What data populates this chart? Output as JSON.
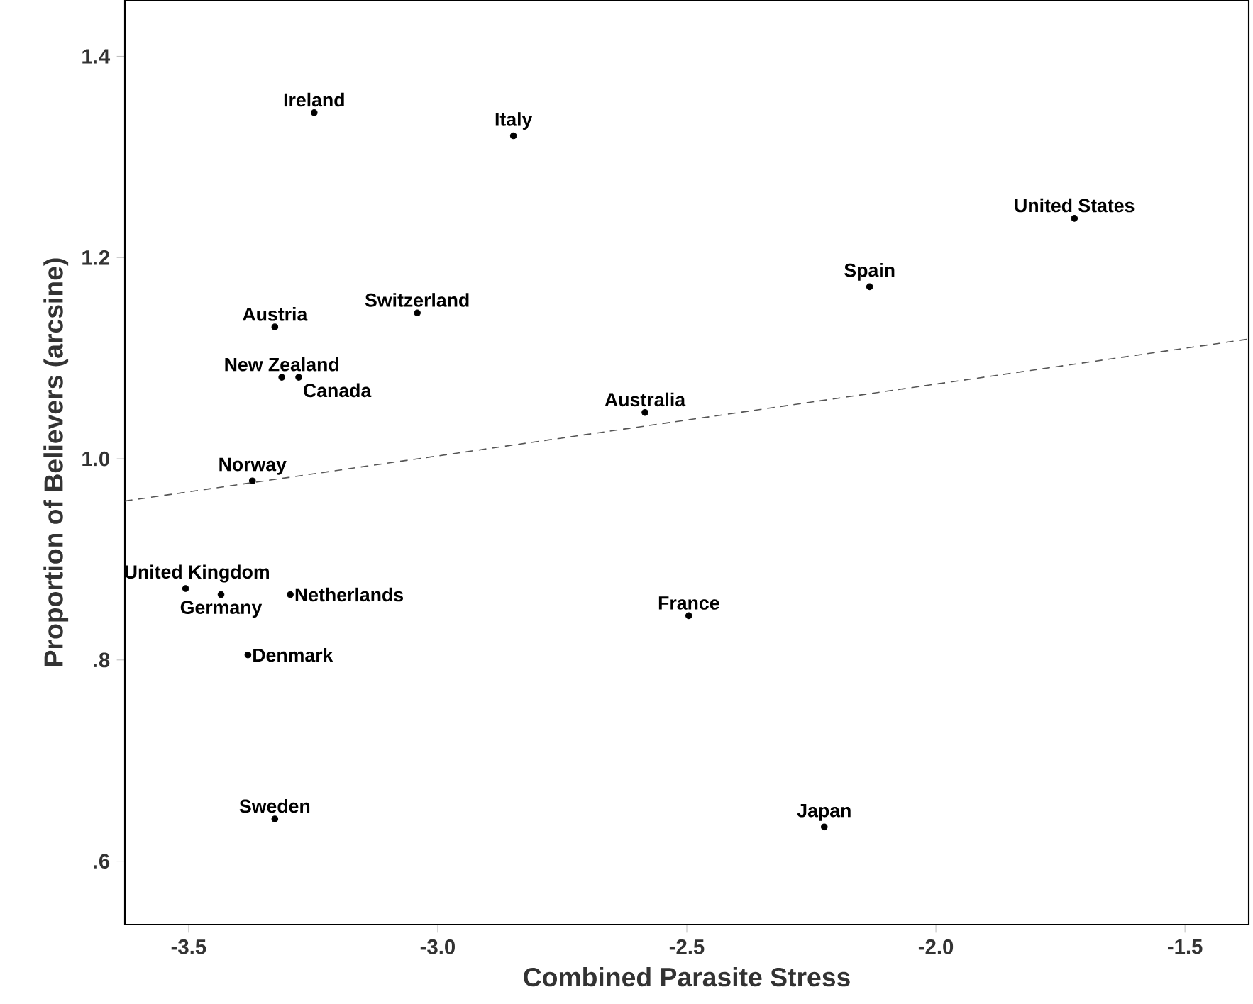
{
  "chart_data": {
    "type": "scatter",
    "xlabel": "Combined Parasite Stress",
    "ylabel": "Proportion of Believers (arcsine)",
    "xlim": [
      -3.628,
      -1.372
    ],
    "ylim": [
      0.537,
      1.456
    ],
    "xticks": [
      {
        "value": -3.5,
        "label": "-3.5"
      },
      {
        "value": -3.0,
        "label": "-3.0"
      },
      {
        "value": -2.5,
        "label": "-2.5"
      },
      {
        "value": -2.0,
        "label": "-2.0"
      },
      {
        "value": -1.5,
        "label": "-1.5"
      }
    ],
    "yticks": [
      {
        "value": 0.6,
        "label": ".6"
      },
      {
        "value": 0.8,
        "label": ".8"
      },
      {
        "value": 1.0,
        "label": "1.0"
      },
      {
        "value": 1.2,
        "label": "1.2"
      },
      {
        "value": 1.4,
        "label": "1.4"
      }
    ],
    "grid": false,
    "series": [
      {
        "color": "#000000",
        "marker": "circle",
        "x": [
          -3.248,
          -2.848,
          -1.722,
          -2.133,
          -3.041,
          -3.327,
          -3.313,
          -3.279,
          -2.584,
          -3.372,
          -3.506,
          -3.435,
          -3.296,
          -2.496,
          -3.381,
          -3.327,
          -2.224
        ],
        "values": [
          1.344,
          1.321,
          1.239,
          1.171,
          1.145,
          1.131,
          1.081,
          1.081,
          1.046,
          0.978,
          0.871,
          0.865,
          0.865,
          0.844,
          0.805,
          0.642,
          0.634
        ]
      },
      {
        "type": "line",
        "color": "#555555",
        "line_style": "dashed",
        "marker": "none",
        "x": [
          -3.628,
          -1.372
        ],
        "values": [
          0.958,
          1.119
        ]
      }
    ],
    "annotations": [
      {
        "text": "Ireland",
        "x": -3.248,
        "y": 1.344
      },
      {
        "text": "Italy",
        "x": -2.848,
        "y": 1.321
      },
      {
        "text": "United States",
        "x": -1.722,
        "y": 1.239
      },
      {
        "text": "Spain",
        "x": -2.133,
        "y": 1.171
      },
      {
        "text": "Switzerland",
        "x": -3.041,
        "y": 1.145
      },
      {
        "text": "Austria",
        "x": -3.327,
        "y": 1.131
      },
      {
        "text": "New Zealand",
        "x": -3.313,
        "y": 1.081
      },
      {
        "text": "Canada",
        "x": -3.279,
        "y": 1.081
      },
      {
        "text": "Australia",
        "x": -2.584,
        "y": 1.046
      },
      {
        "text": "Norway",
        "x": -3.372,
        "y": 0.978
      },
      {
        "text": "United Kingdom",
        "x": -3.506,
        "y": 0.871
      },
      {
        "text": "Germany",
        "x": -3.435,
        "y": 0.865
      },
      {
        "text": "Netherlands",
        "x": -3.296,
        "y": 0.865
      },
      {
        "text": "France",
        "x": -2.496,
        "y": 0.844
      },
      {
        "text": "Denmark",
        "x": -3.381,
        "y": 0.805
      },
      {
        "text": "Sweden",
        "x": -3.327,
        "y": 0.642
      },
      {
        "text": "Japan",
        "x": -2.224,
        "y": 0.634
      }
    ]
  }
}
